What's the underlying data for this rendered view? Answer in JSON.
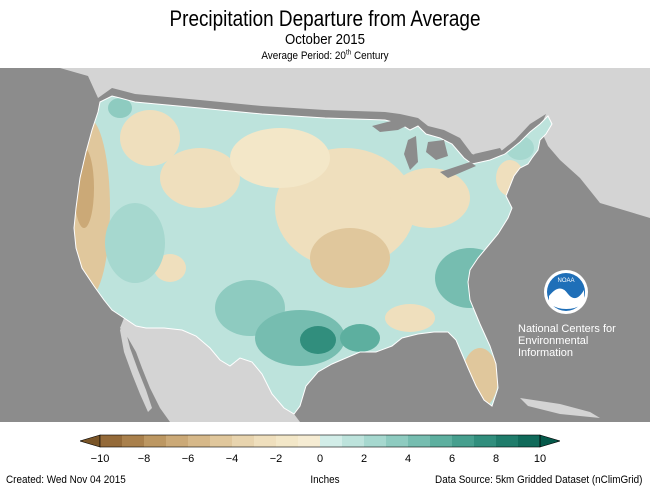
{
  "header": {
    "title": "Precipitation Departure from Average",
    "subtitle": "October 2015",
    "period_prefix": "Average Period: 20",
    "period_sup": "th",
    "period_suffix": " Century"
  },
  "logo": {
    "badge_text": "NOAA",
    "org_lines": [
      "National Centers for",
      "Environmental",
      "Information"
    ]
  },
  "legend": {
    "units": "Inches",
    "ticks": [
      "−10",
      "−8",
      "−6",
      "−4",
      "−2",
      "0",
      "2",
      "4",
      "6",
      "8",
      "10"
    ],
    "bins": [
      {
        "from": -10,
        "to": -9,
        "color": "#946a39"
      },
      {
        "from": -9,
        "to": -8,
        "color": "#a9804c"
      },
      {
        "from": -8,
        "to": -7,
        "color": "#bc9762"
      },
      {
        "from": -7,
        "to": -6,
        "color": "#cba977"
      },
      {
        "from": -6,
        "to": -5,
        "color": "#d6b889"
      },
      {
        "from": -5,
        "to": -4,
        "color": "#e0c79c"
      },
      {
        "from": -4,
        "to": -3,
        "color": "#e8d4ae"
      },
      {
        "from": -3,
        "to": -2,
        "color": "#efdfbd"
      },
      {
        "from": -2,
        "to": -1,
        "color": "#f3e7c8"
      },
      {
        "from": -1,
        "to": 0,
        "color": "#f6ecd3"
      },
      {
        "from": 0,
        "to": 1,
        "color": "#d2ede8"
      },
      {
        "from": 1,
        "to": 2,
        "color": "#bde3dc"
      },
      {
        "from": 2,
        "to": 3,
        "color": "#a6d8cf"
      },
      {
        "from": 3,
        "to": 4,
        "color": "#8ecbc0"
      },
      {
        "from": 4,
        "to": 5,
        "color": "#76bdb0"
      },
      {
        "from": 5,
        "to": 6,
        "color": "#5daf9f"
      },
      {
        "from": 6,
        "to": 7,
        "color": "#469f8e"
      },
      {
        "from": 7,
        "to": 8,
        "color": "#318e7d"
      },
      {
        "from": 8,
        "to": 9,
        "color": "#1f7c6b"
      },
      {
        "from": 9,
        "to": 10,
        "color": "#106a5a"
      }
    ],
    "under_color": "#7a5528",
    "over_color": "#05594a"
  },
  "footer": {
    "created": "Created: Wed Nov 04 2015",
    "source": "Data Source: 5km Gridded Dataset (nClimGrid)"
  },
  "colors": {
    "ocean": "#8c8c8c",
    "canada_mexico": "#d4d4d4",
    "lakes": "#8c8c8c"
  }
}
